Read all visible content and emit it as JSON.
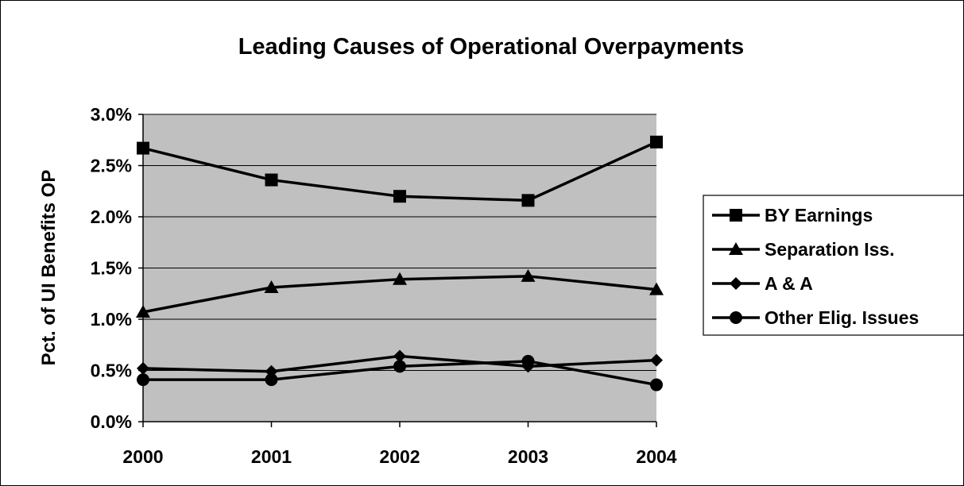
{
  "chart_data": {
    "type": "line",
    "title": "Leading Causes of Operational Overpayments",
    "xlabel": "",
    "ylabel": "Pct. of UI Benefits OP",
    "categories": [
      "2000",
      "2001",
      "2002",
      "2003",
      "2004"
    ],
    "y_ticks": [
      "0.0%",
      "0.5%",
      "1.0%",
      "1.5%",
      "2.0%",
      "2.5%",
      "3.0%"
    ],
    "ylim": [
      0,
      0.03
    ],
    "grid": true,
    "plot_background": "#c0c0c0",
    "line_color": "#000000",
    "legend_position": "right",
    "series": [
      {
        "name": "BY Earnings",
        "marker": "square",
        "values": [
          0.0267,
          0.0236,
          0.022,
          0.0216,
          0.0273
        ]
      },
      {
        "name": "Separation Iss.",
        "marker": "triangle",
        "values": [
          0.0107,
          0.0131,
          0.0139,
          0.0142,
          0.0129
        ]
      },
      {
        "name": "A & A",
        "marker": "diamond",
        "values": [
          0.0052,
          0.0049,
          0.0064,
          0.0054,
          0.006
        ]
      },
      {
        "name": "Other Elig. Issues",
        "marker": "circle",
        "values": [
          0.0041,
          0.0041,
          0.0054,
          0.0059,
          0.0036
        ]
      }
    ]
  }
}
